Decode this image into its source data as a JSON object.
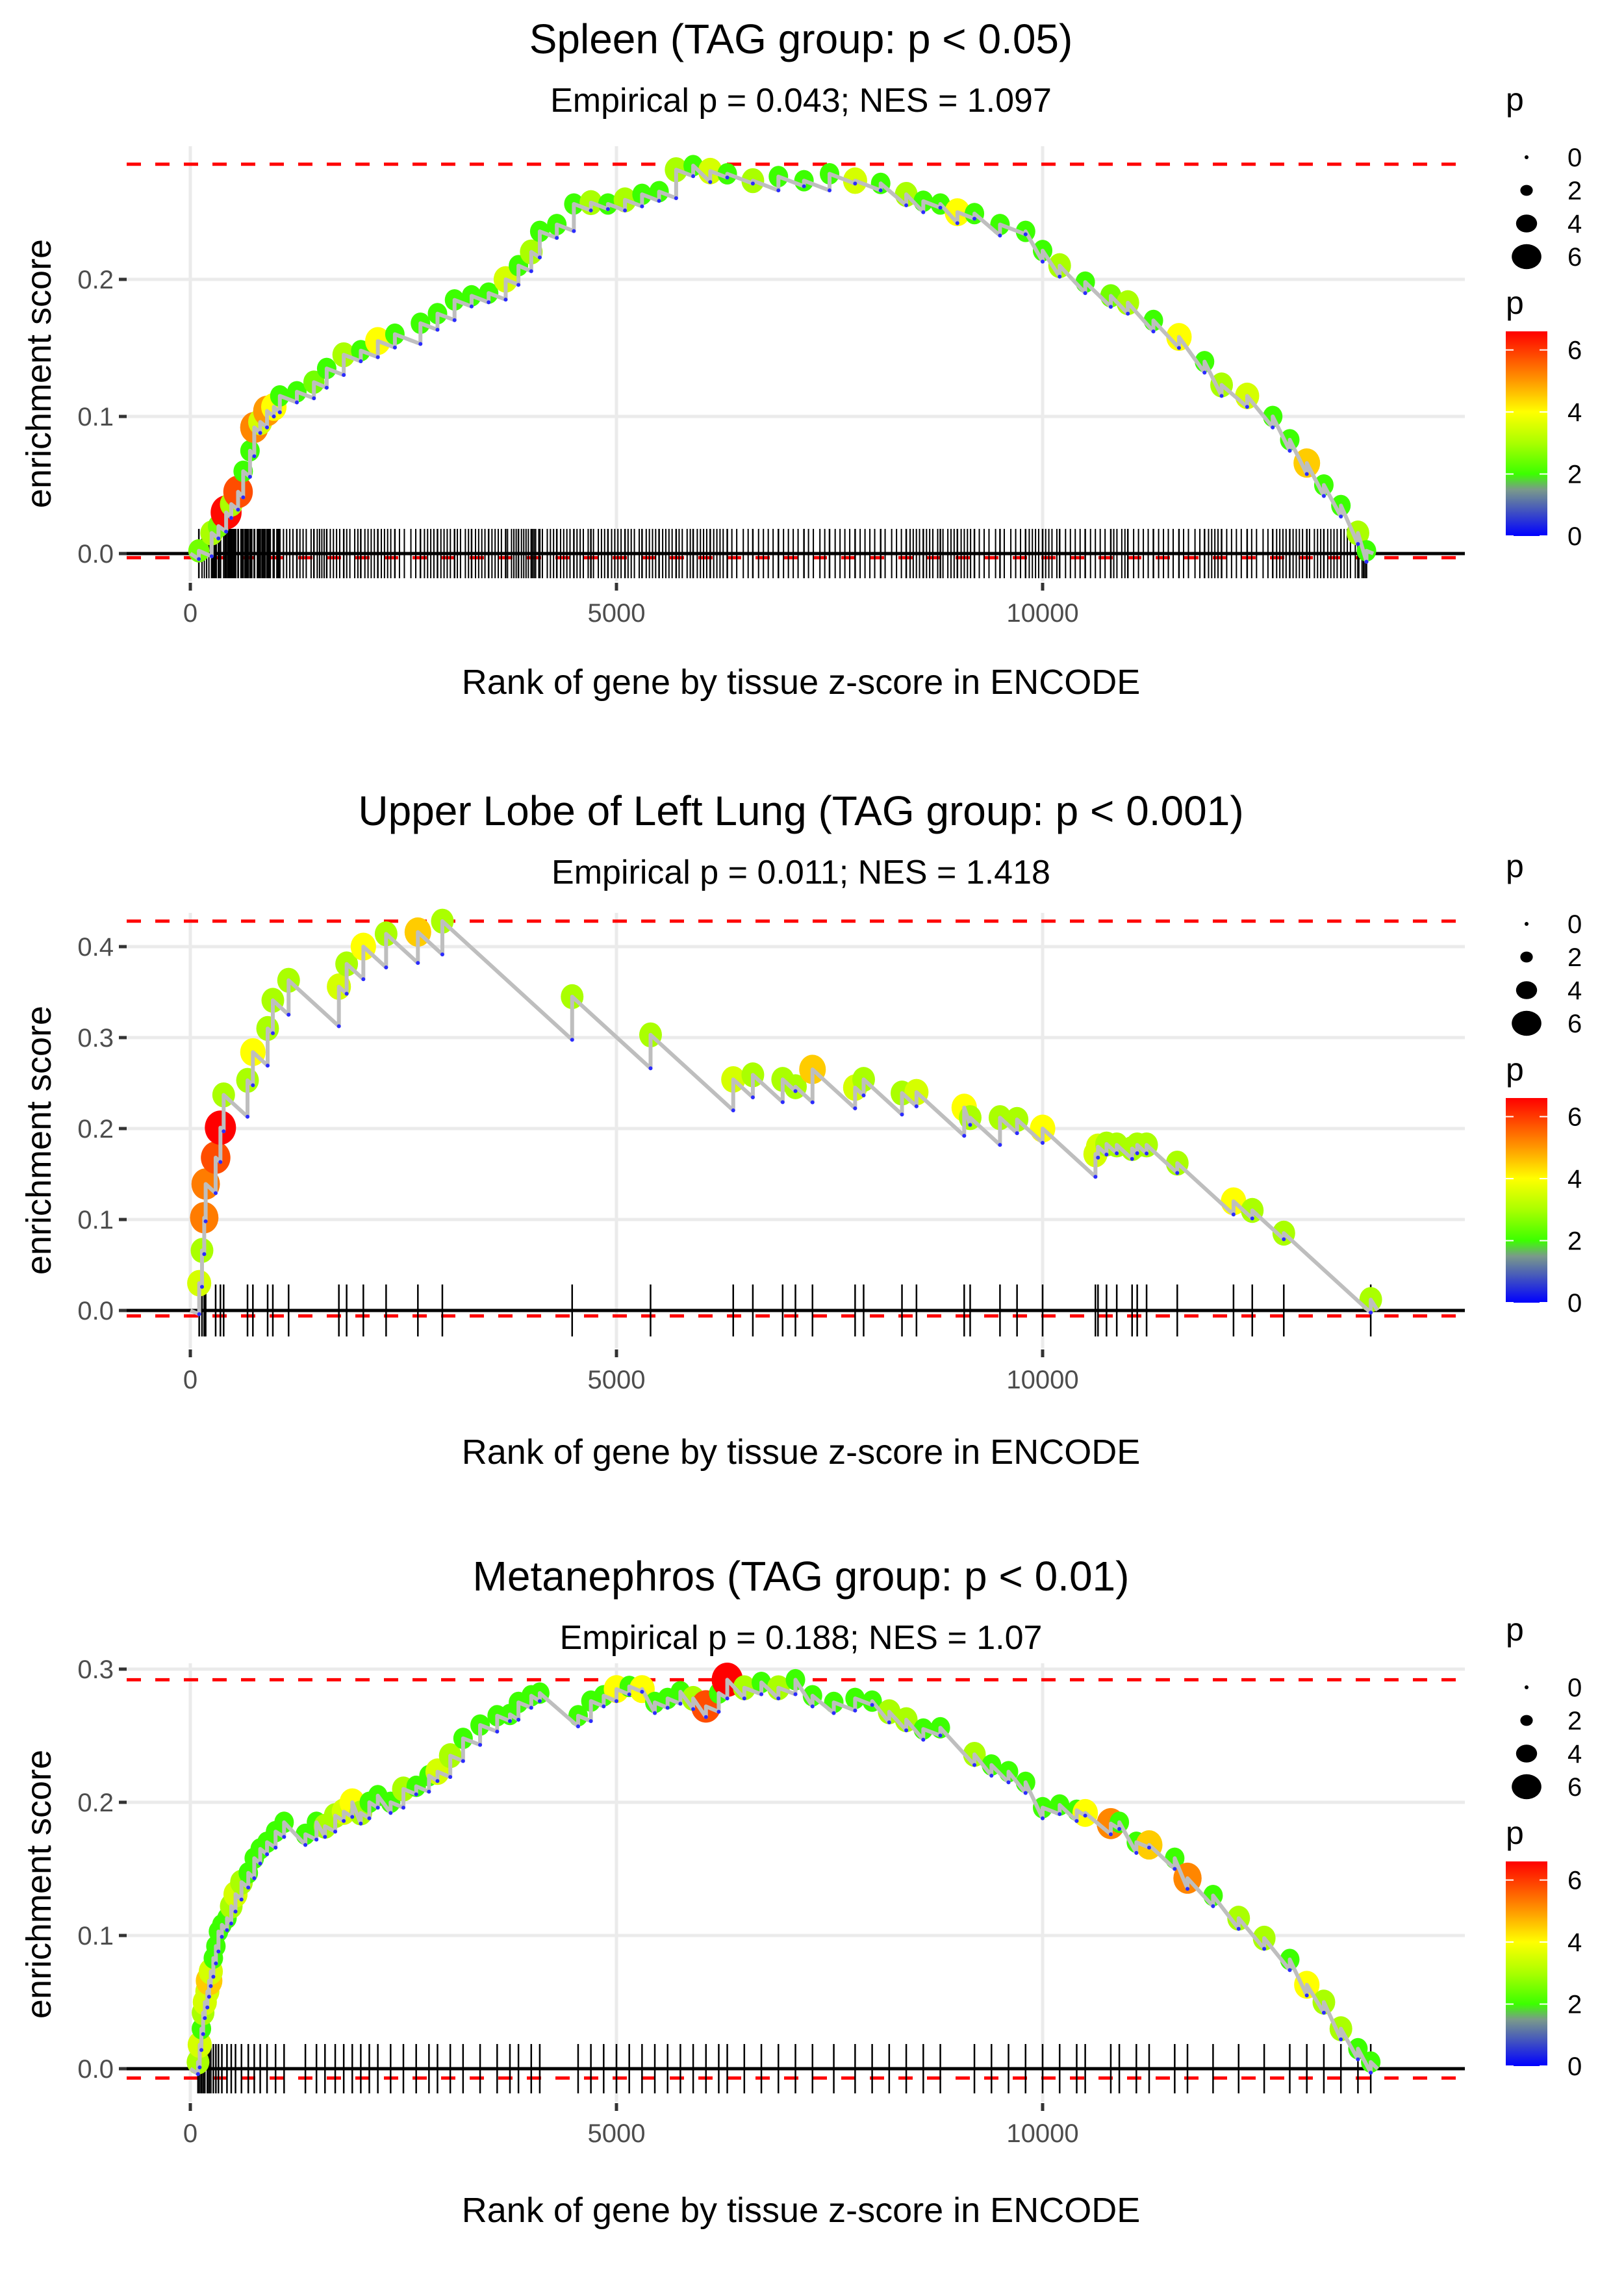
{
  "colors": {
    "gridline": "#ebebeb",
    "reference_line": "#ff0000",
    "running_sum_line": "#bebebe",
    "baseline": "#000000",
    "hit_tick": "#000000",
    "valley_point": "#2b2bff",
    "color_scale": [
      {
        "p": 0,
        "color": "#0000ff"
      },
      {
        "p": 1.5,
        "color": "#7a9a8a"
      },
      {
        "p": 2,
        "color": "#3cff00"
      },
      {
        "p": 3,
        "color": "#aaff00"
      },
      {
        "p": 4,
        "color": "#ffff00"
      },
      {
        "p": 5,
        "color": "#ff9900"
      },
      {
        "p": 6.6,
        "color": "#ff0000"
      }
    ]
  },
  "legend": {
    "size_title": "p",
    "size_entries": [
      "0",
      "2",
      "4",
      "6"
    ],
    "size_values": [
      0,
      2,
      4,
      6
    ],
    "color_title": "p",
    "color_ticks": [
      "6",
      "4",
      "2",
      "0"
    ],
    "color_tick_values": [
      6,
      4,
      2,
      0
    ],
    "color_range": [
      0,
      6.6
    ]
  },
  "chart_data": [
    {
      "type": "line",
      "id": "spleen",
      "title": "Spleen (TAG group: p < 0.05)",
      "subtitle": "Empirical p = 0.043; NES = 1.097",
      "xlabel": "Rank of gene by tissue z-score in ENCODE",
      "ylabel": "enrichment score",
      "x_ticks": [
        0,
        5000,
        10000
      ],
      "x_tick_labels": [
        "0",
        "5000",
        "10000"
      ],
      "y_ticks": [
        0.0,
        0.1,
        0.2
      ],
      "y_tick_labels": [
        "0.0",
        "0.1",
        "0.2"
      ],
      "xlim": [
        -1650,
        14350
      ],
      "ylim": [
        -0.05,
        0.29
      ],
      "max_es": 0.284,
      "min_es": -0.003,
      "grid": true,
      "legend": "right",
      "hits": [
        [
          100,
          0.002,
          2.5
        ],
        [
          250,
          0.015,
          3
        ],
        [
          330,
          0.02,
          2.5
        ],
        [
          420,
          0.03,
          6.5
        ],
        [
          480,
          0.036,
          3
        ],
        [
          560,
          0.045,
          5.8
        ],
        [
          620,
          0.06,
          2
        ],
        [
          700,
          0.075,
          2
        ],
        [
          750,
          0.092,
          5.2
        ],
        [
          820,
          0.096,
          3.5
        ],
        [
          900,
          0.104,
          5.0
        ],
        [
          980,
          0.107,
          4
        ],
        [
          1050,
          0.115,
          2
        ],
        [
          1250,
          0.118,
          2
        ],
        [
          1450,
          0.125,
          2.5
        ],
        [
          1600,
          0.135,
          2
        ],
        [
          1800,
          0.145,
          3
        ],
        [
          2000,
          0.148,
          2
        ],
        [
          2200,
          0.155,
          4
        ],
        [
          2400,
          0.16,
          2
        ],
        [
          2700,
          0.168,
          2
        ],
        [
          2900,
          0.175,
          2
        ],
        [
          3100,
          0.185,
          2
        ],
        [
          3300,
          0.188,
          2
        ],
        [
          3500,
          0.19,
          2
        ],
        [
          3700,
          0.2,
          3.5
        ],
        [
          3850,
          0.21,
          2
        ],
        [
          4000,
          0.22,
          3
        ],
        [
          4100,
          0.235,
          2
        ],
        [
          4300,
          0.24,
          2
        ],
        [
          4500,
          0.255,
          2
        ],
        [
          4700,
          0.256,
          3
        ],
        [
          4900,
          0.255,
          2
        ],
        [
          5100,
          0.258,
          3
        ],
        [
          5300,
          0.262,
          2
        ],
        [
          5500,
          0.264,
          2
        ],
        [
          5700,
          0.28,
          3
        ],
        [
          5900,
          0.283,
          2
        ],
        [
          6100,
          0.279,
          3.5
        ],
        [
          6300,
          0.277,
          2
        ],
        [
          6600,
          0.272,
          3
        ],
        [
          6900,
          0.275,
          2
        ],
        [
          7200,
          0.272,
          2
        ],
        [
          7500,
          0.277,
          2
        ],
        [
          7800,
          0.272,
          3.5
        ],
        [
          8100,
          0.27,
          2
        ],
        [
          8400,
          0.262,
          3
        ],
        [
          8600,
          0.257,
          2
        ],
        [
          8800,
          0.255,
          2
        ],
        [
          9000,
          0.249,
          4
        ],
        [
          9200,
          0.248,
          2
        ],
        [
          9500,
          0.24,
          2
        ],
        [
          9800,
          0.235,
          2
        ],
        [
          10000,
          0.221,
          2
        ],
        [
          10200,
          0.21,
          3
        ],
        [
          10500,
          0.198,
          2
        ],
        [
          10800,
          0.188,
          2.5
        ],
        [
          11000,
          0.183,
          3
        ],
        [
          11300,
          0.17,
          2
        ],
        [
          11600,
          0.158,
          4
        ],
        [
          11900,
          0.14,
          2
        ],
        [
          12100,
          0.123,
          3
        ],
        [
          12400,
          0.115,
          3.5
        ],
        [
          12700,
          0.1,
          2
        ],
        [
          12900,
          0.083,
          2
        ],
        [
          13100,
          0.066,
          4.5
        ],
        [
          13300,
          0.05,
          2
        ],
        [
          13500,
          0.035,
          2
        ],
        [
          13700,
          0.015,
          3
        ],
        [
          13800,
          0.002,
          2
        ]
      ]
    },
    {
      "type": "line",
      "id": "upper-lobe-left-lung",
      "title": "Upper Lobe of Left Lung (TAG group: p < 0.001)",
      "subtitle": "Empirical p = 0.011; NES = 1.418",
      "xlabel": "Rank of gene by tissue z-score in ENCODE",
      "ylabel": "enrichment score",
      "x_ticks": [
        0,
        5000,
        10000
      ],
      "x_tick_labels": [
        "0",
        "5000",
        "10000"
      ],
      "y_ticks": [
        0.0,
        0.1,
        0.2,
        0.3,
        0.4
      ],
      "y_tick_labels": [
        "0.0",
        "0.1",
        "0.2",
        "0.3",
        "0.4"
      ],
      "xlim": [
        -1650,
        14350
      ],
      "ylim": [
        -0.03,
        0.44
      ],
      "max_es": 0.428,
      "min_es": -0.006,
      "grid": true,
      "legend": "right",
      "hits": [
        [
          104,
          0.03,
          3.5
        ],
        [
          137,
          0.066,
          3.0
        ],
        [
          163,
          0.102,
          5.3
        ],
        [
          180,
          0.139,
          5.3
        ],
        [
          297,
          0.168,
          5.8
        ],
        [
          353,
          0.201,
          6.6
        ],
        [
          391,
          0.237,
          3.0
        ],
        [
          671,
          0.253,
          3.0
        ],
        [
          734,
          0.284,
          4.0
        ],
        [
          907,
          0.31,
          3.0
        ],
        [
          968,
          0.341,
          3.0
        ],
        [
          1153,
          0.363,
          3.0
        ],
        [
          1743,
          0.356,
          3.5
        ],
        [
          1834,
          0.381,
          3.0
        ],
        [
          2030,
          0.4,
          4.0
        ],
        [
          2297,
          0.414,
          3.0
        ],
        [
          2670,
          0.416,
          4.5
        ],
        [
          2957,
          0.428,
          3.0
        ],
        [
          4480,
          0.345,
          3.0
        ],
        [
          5400,
          0.303,
          3.0
        ],
        [
          6370,
          0.254,
          3.5
        ],
        [
          6600,
          0.259,
          3.0
        ],
        [
          6950,
          0.254,
          3.0
        ],
        [
          7300,
          0.265,
          4.5
        ],
        [
          7100,
          0.246,
          3.0
        ],
        [
          7800,
          0.245,
          3.5
        ],
        [
          7900,
          0.254,
          3.0
        ],
        [
          8350,
          0.239,
          3.0
        ],
        [
          8520,
          0.24,
          3.5
        ],
        [
          9080,
          0.223,
          4.0
        ],
        [
          9150,
          0.212,
          3.0
        ],
        [
          9500,
          0.212,
          3.0
        ],
        [
          9700,
          0.21,
          3.0
        ],
        [
          10000,
          0.2,
          4.0
        ],
        [
          10620,
          0.172,
          3.5
        ],
        [
          10650,
          0.18,
          3.5
        ],
        [
          10750,
          0.183,
          3.0
        ],
        [
          10870,
          0.182,
          3.0
        ],
        [
          11050,
          0.178,
          3.0
        ],
        [
          11110,
          0.182,
          3.0
        ],
        [
          11220,
          0.182,
          3.0
        ],
        [
          11580,
          0.162,
          3.0
        ],
        [
          12240,
          0.12,
          4.0
        ],
        [
          12460,
          0.11,
          3.0
        ],
        [
          12830,
          0.085,
          3.0
        ],
        [
          13850,
          0.012,
          3.0
        ]
      ]
    },
    {
      "type": "line",
      "id": "metanephros",
      "title": "Metanephros (TAG group: p < 0.01)",
      "subtitle": "Empirical p = 0.188; NES = 1.07",
      "xlabel": "Rank of gene by tissue z-score in ENCODE",
      "ylabel": "enrichment score",
      "x_ticks": [
        0,
        5000,
        10000
      ],
      "x_tick_labels": [
        "0",
        "5000",
        "10000"
      ],
      "y_ticks": [
        0.0,
        0.1,
        0.2,
        0.3
      ],
      "y_tick_labels": [
        "0.0",
        "0.1",
        "0.2",
        "0.3"
      ],
      "xlim": [
        -1650,
        14350
      ],
      "ylim": [
        -0.035,
        0.305
      ],
      "max_es": 0.292,
      "min_es": -0.007,
      "grid": true,
      "legend": "right",
      "hits": [
        [
          90,
          0.005,
          3
        ],
        [
          110,
          0.018,
          3.5
        ],
        [
          130,
          0.03,
          2
        ],
        [
          150,
          0.042,
          3
        ],
        [
          170,
          0.05,
          3.5
        ],
        [
          200,
          0.058,
          3.5
        ],
        [
          220,
          0.066,
          4.5
        ],
        [
          240,
          0.073,
          3.5
        ],
        [
          270,
          0.083,
          2
        ],
        [
          300,
          0.092,
          2
        ],
        [
          330,
          0.103,
          2
        ],
        [
          370,
          0.108,
          2
        ],
        [
          430,
          0.113,
          2
        ],
        [
          480,
          0.122,
          3
        ],
        [
          530,
          0.131,
          3.5
        ],
        [
          600,
          0.14,
          3
        ],
        [
          680,
          0.147,
          2
        ],
        [
          750,
          0.158,
          2
        ],
        [
          820,
          0.165,
          2
        ],
        [
          900,
          0.17,
          2
        ],
        [
          1000,
          0.178,
          2
        ],
        [
          1100,
          0.185,
          2
        ],
        [
          1350,
          0.176,
          2
        ],
        [
          1480,
          0.185,
          2
        ],
        [
          1580,
          0.182,
          3
        ],
        [
          1700,
          0.19,
          3
        ],
        [
          1800,
          0.193,
          3.5
        ],
        [
          1900,
          0.2,
          4
        ],
        [
          2000,
          0.192,
          3
        ],
        [
          2100,
          0.2,
          2
        ],
        [
          2200,
          0.205,
          2
        ],
        [
          2350,
          0.2,
          2
        ],
        [
          2500,
          0.21,
          3
        ],
        [
          2650,
          0.212,
          2
        ],
        [
          2800,
          0.22,
          2
        ],
        [
          2900,
          0.223,
          3.5
        ],
        [
          3050,
          0.235,
          3
        ],
        [
          3200,
          0.248,
          2
        ],
        [
          3400,
          0.258,
          2
        ],
        [
          3600,
          0.265,
          2
        ],
        [
          3750,
          0.266,
          2
        ],
        [
          3850,
          0.275,
          2
        ],
        [
          4000,
          0.28,
          2
        ],
        [
          4100,
          0.282,
          2
        ],
        [
          4550,
          0.265,
          2
        ],
        [
          4700,
          0.276,
          2
        ],
        [
          4850,
          0.28,
          2
        ],
        [
          5000,
          0.285,
          4
        ],
        [
          5150,
          0.287,
          2
        ],
        [
          5300,
          0.285,
          4
        ],
        [
          5450,
          0.275,
          2
        ],
        [
          5600,
          0.278,
          2
        ],
        [
          5750,
          0.283,
          2
        ],
        [
          5900,
          0.278,
          3
        ],
        [
          6050,
          0.272,
          5.8
        ],
        [
          6200,
          0.282,
          2
        ],
        [
          6300,
          0.292,
          6.6
        ],
        [
          6500,
          0.286,
          3
        ],
        [
          6700,
          0.29,
          2
        ],
        [
          6900,
          0.286,
          3
        ],
        [
          7100,
          0.292,
          2
        ],
        [
          7300,
          0.28,
          2
        ],
        [
          7550,
          0.275,
          2
        ],
        [
          7800,
          0.278,
          2
        ],
        [
          8000,
          0.276,
          2
        ],
        [
          8200,
          0.268,
          3
        ],
        [
          8400,
          0.262,
          3
        ],
        [
          8600,
          0.255,
          2
        ],
        [
          8800,
          0.256,
          2
        ],
        [
          9200,
          0.236,
          3
        ],
        [
          9400,
          0.228,
          2
        ],
        [
          9600,
          0.223,
          2
        ],
        [
          9800,
          0.215,
          2
        ],
        [
          10000,
          0.196,
          2
        ],
        [
          10200,
          0.198,
          2
        ],
        [
          10400,
          0.194,
          2
        ],
        [
          10500,
          0.192,
          4
        ],
        [
          10800,
          0.184,
          5.2
        ],
        [
          10900,
          0.185,
          2
        ],
        [
          11100,
          0.17,
          2
        ],
        [
          11250,
          0.168,
          4.5
        ],
        [
          11550,
          0.158,
          2
        ],
        [
          11700,
          0.143,
          5.2
        ],
        [
          12000,
          0.13,
          2
        ],
        [
          12300,
          0.113,
          3
        ],
        [
          12600,
          0.098,
          3
        ],
        [
          12900,
          0.082,
          2
        ],
        [
          13100,
          0.063,
          4
        ],
        [
          13300,
          0.05,
          3
        ],
        [
          13500,
          0.03,
          3
        ],
        [
          13700,
          0.015,
          2
        ],
        [
          13850,
          0.005,
          2
        ]
      ]
    }
  ]
}
